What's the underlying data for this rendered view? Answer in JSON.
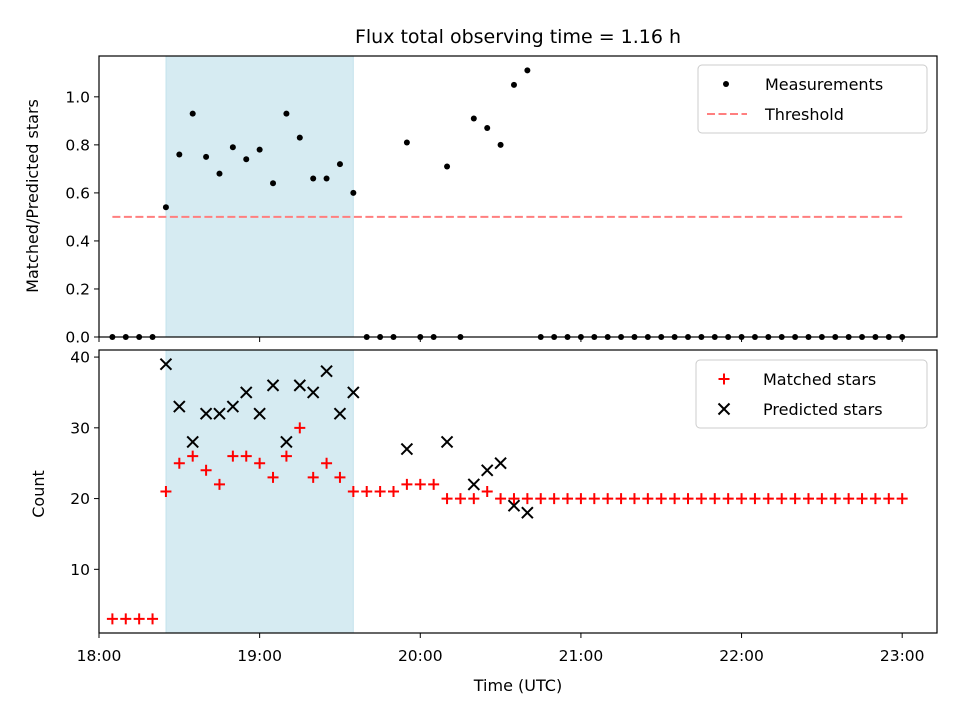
{
  "chart_data": [
    {
      "type": "scatter",
      "title": "Flux total observing time = 1.16 h",
      "xlabel": "",
      "ylabel": "Matched/Predicted stars",
      "xlim": [
        "18:00",
        "23:13"
      ],
      "ylim": [
        0,
        1.17
      ],
      "xticks": [
        "18:00",
        "19:00",
        "20:00",
        "21:00",
        "22:00",
        "23:00"
      ],
      "yticks": [
        "0.0",
        "0.2",
        "0.4",
        "0.6",
        "0.8",
        "1.0"
      ],
      "highlight_span": [
        "18:25",
        "19:35"
      ],
      "highlight_color": "#add8e6",
      "legend_position": "upper right",
      "series": [
        {
          "name": "Measurements",
          "marker": "dot",
          "color": "#000000",
          "x": [
            "18:05",
            "18:10",
            "18:15",
            "18:20",
            "18:25",
            "18:30",
            "18:35",
            "18:40",
            "18:45",
            "18:50",
            "18:55",
            "19:00",
            "19:05",
            "19:10",
            "19:15",
            "19:20",
            "19:25",
            "19:30",
            "19:35",
            "19:40",
            "19:45",
            "19:50",
            "19:55",
            "20:00",
            "20:05",
            "20:10",
            "20:15",
            "20:20",
            "20:25",
            "20:30",
            "20:35",
            "20:40",
            "20:45",
            "20:50",
            "20:55",
            "21:00",
            "21:05",
            "21:10",
            "21:15",
            "21:20",
            "21:25",
            "21:30",
            "21:35",
            "21:40",
            "21:45",
            "21:50",
            "21:55",
            "22:00",
            "22:05",
            "22:10",
            "22:15",
            "22:20",
            "22:25",
            "22:30",
            "22:35",
            "22:40",
            "22:45",
            "22:50",
            "22:55",
            "23:00"
          ],
          "y": [
            0,
            0,
            0,
            0,
            0.54,
            0.76,
            0.93,
            0.75,
            0.68,
            0.79,
            0.74,
            0.78,
            0.64,
            0.93,
            0.83,
            0.66,
            0.66,
            0.72,
            0.6,
            0,
            0,
            0,
            0.81,
            0,
            0,
            0.71,
            0,
            0.91,
            0.87,
            0.8,
            1.05,
            1.11,
            0,
            0,
            0,
            0,
            0,
            0,
            0,
            0,
            0,
            0,
            0,
            0,
            0,
            0,
            0,
            0,
            0,
            0,
            0,
            0,
            0,
            0,
            0,
            0,
            0,
            0,
            0,
            0
          ]
        },
        {
          "name": "Threshold",
          "style": "dashed",
          "color": "#ff7f7f",
          "x": [
            "18:05",
            "23:00"
          ],
          "y": [
            0.5,
            0.5
          ]
        }
      ]
    },
    {
      "type": "scatter",
      "title": "",
      "xlabel": "Time (UTC)",
      "ylabel": "Count",
      "xlim": [
        "18:00",
        "23:13"
      ],
      "ylim": [
        1,
        41
      ],
      "xticks": [
        "18:00",
        "19:00",
        "20:00",
        "21:00",
        "22:00",
        "23:00"
      ],
      "yticks": [
        "10",
        "20",
        "30",
        "40"
      ],
      "highlight_span": [
        "18:25",
        "19:35"
      ],
      "highlight_color": "#add8e6",
      "legend_position": "upper right",
      "series": [
        {
          "name": "Matched stars",
          "marker": "plus",
          "color": "#ff0000",
          "x": [
            "18:05",
            "18:10",
            "18:15",
            "18:20",
            "18:25",
            "18:30",
            "18:35",
            "18:40",
            "18:45",
            "18:50",
            "18:55",
            "19:00",
            "19:05",
            "19:10",
            "19:15",
            "19:20",
            "19:25",
            "19:30",
            "19:35",
            "19:40",
            "19:45",
            "19:50",
            "19:55",
            "20:00",
            "20:05",
            "20:10",
            "20:15",
            "20:20",
            "20:25",
            "20:30",
            "20:35",
            "20:40",
            "20:45",
            "20:50",
            "20:55",
            "21:00",
            "21:05",
            "21:10",
            "21:15",
            "21:20",
            "21:25",
            "21:30",
            "21:35",
            "21:40",
            "21:45",
            "21:50",
            "21:55",
            "22:00",
            "22:05",
            "22:10",
            "22:15",
            "22:20",
            "22:25",
            "22:30",
            "22:35",
            "22:40",
            "22:45",
            "22:50",
            "22:55",
            "23:00"
          ],
          "y": [
            3,
            3,
            3,
            3,
            21,
            25,
            26,
            24,
            22,
            26,
            26,
            25,
            23,
            26,
            30,
            23,
            25,
            23,
            21,
            21,
            21,
            21,
            22,
            22,
            22,
            20,
            20,
            20,
            21,
            20,
            20,
            20,
            20,
            20,
            20,
            20,
            20,
            20,
            20,
            20,
            20,
            20,
            20,
            20,
            20,
            20,
            20,
            20,
            20,
            20,
            20,
            20,
            20,
            20,
            20,
            20,
            20,
            20,
            20,
            20
          ]
        },
        {
          "name": "Predicted stars",
          "marker": "x",
          "color": "#000000",
          "x": [
            "18:25",
            "18:30",
            "18:35",
            "18:40",
            "18:45",
            "18:50",
            "18:55",
            "19:00",
            "19:05",
            "19:10",
            "19:15",
            "19:20",
            "19:25",
            "19:30",
            "19:35",
            "19:55",
            "20:10",
            "20:20",
            "20:25",
            "20:30",
            "20:35",
            "20:40"
          ],
          "y": [
            39,
            33,
            28,
            32,
            32,
            33,
            35,
            32,
            36,
            28,
            36,
            35,
            38,
            32,
            35,
            27,
            28,
            22,
            24,
            25,
            19,
            18
          ]
        }
      ]
    }
  ]
}
